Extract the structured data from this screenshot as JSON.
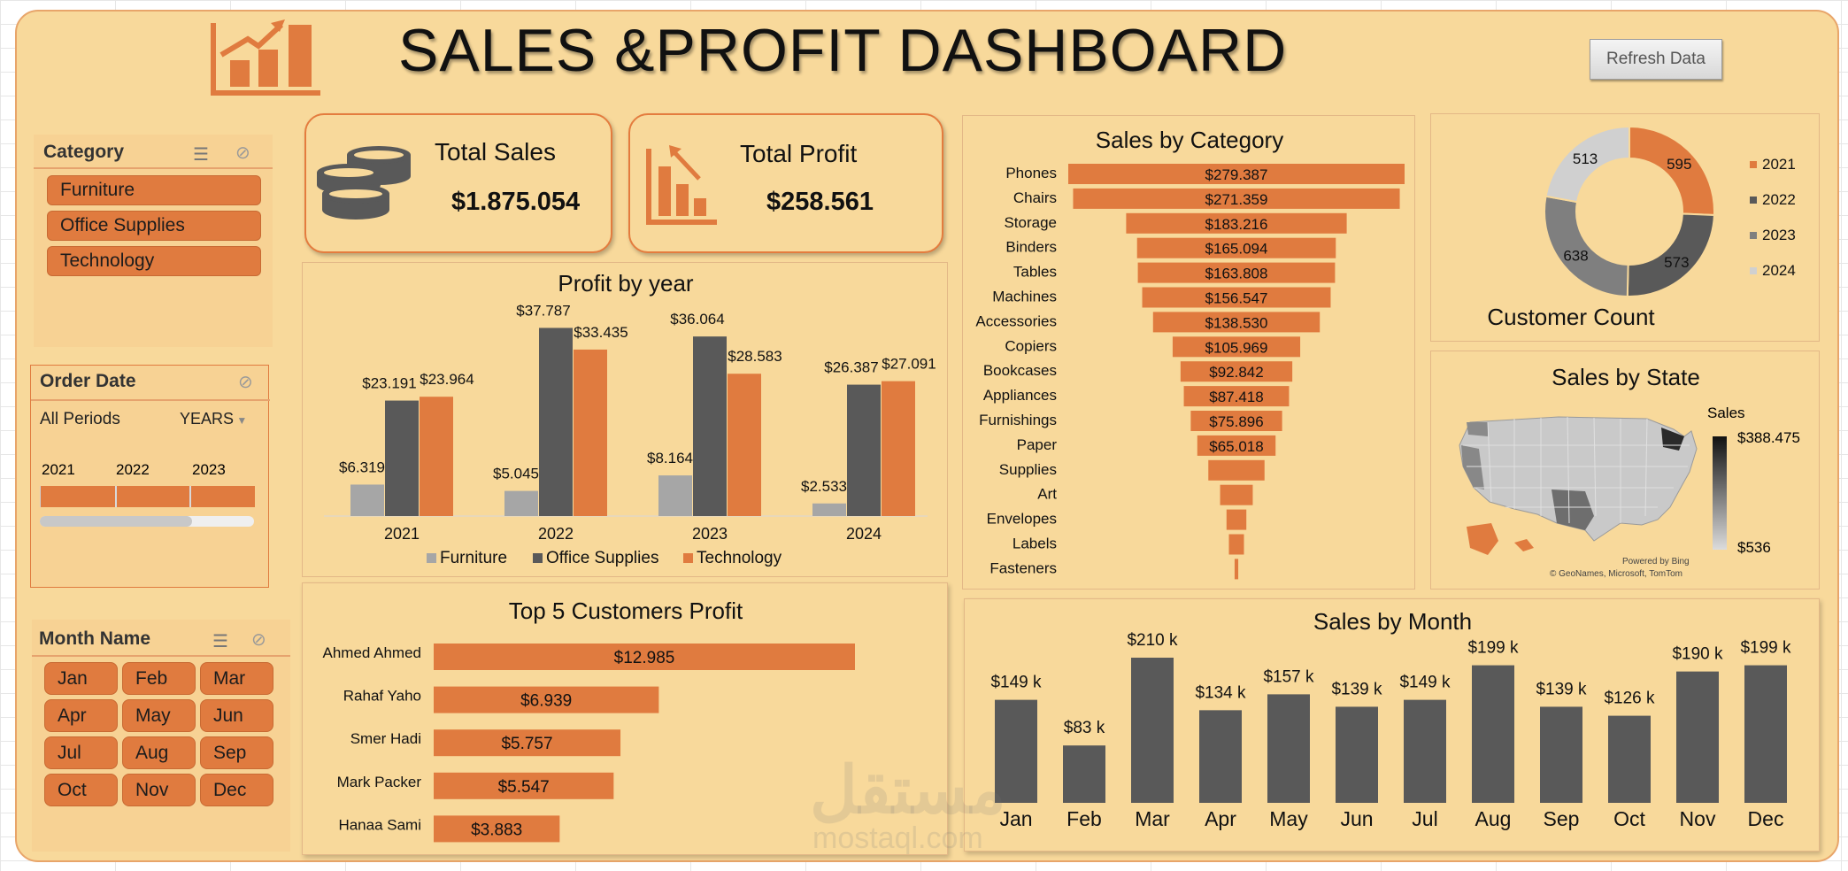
{
  "header": {
    "title": "SALES &PROFIT DASHBOARD",
    "refresh_label": "Refresh Data"
  },
  "kpis": {
    "sales_label": "Total Sales",
    "sales_value": "$1.875.054",
    "profit_label": "Total Profit",
    "profit_value": "$258.561"
  },
  "slicers": {
    "category": {
      "title": "Category",
      "items": [
        "Furniture",
        "Office Supplies",
        "Technology"
      ]
    },
    "order_date": {
      "title": "Order Date",
      "period": "All Periods",
      "level": "YEARS",
      "years": [
        "2021",
        "2022",
        "2023"
      ]
    },
    "month": {
      "title": "Month Name",
      "items": [
        "Jan",
        "Feb",
        "Mar",
        "Apr",
        "May",
        "Jun",
        "Jul",
        "Aug",
        "Sep",
        "Oct",
        "Nov",
        "Dec"
      ]
    }
  },
  "colors": {
    "orange": "#e07b3f",
    "dark": "#595959",
    "gray": "#a6a6a6",
    "light": "#d0d0d0",
    "bg": "#f8d99b"
  },
  "map": {
    "title": "Sales by State",
    "legend_title": "Sales",
    "max": "$388.475",
    "min": "$536",
    "credit1": "Powered by Bing",
    "credit2": "© GeoNames, Microsoft, TomTom"
  },
  "watermark": {
    "arabic": "مستقل",
    "latin": "mostaql.com"
  },
  "chart_data": [
    {
      "id": "profit_by_year",
      "type": "bar",
      "title": "Profit by year",
      "categories": [
        "2021",
        "2022",
        "2023",
        "2024"
      ],
      "series": [
        {
          "name": "Furniture",
          "values": [
            6319,
            5045,
            8164,
            2533
          ],
          "labels": [
            "$6.319",
            "$5.045",
            "$8.164",
            "$2.533"
          ]
        },
        {
          "name": "Office Supplies",
          "values": [
            23191,
            37787,
            36064,
            26387
          ],
          "labels": [
            "$23.191",
            "$37.787",
            "$36.064",
            "$26.387"
          ]
        },
        {
          "name": "Technology",
          "values": [
            23964,
            33435,
            28583,
            27091
          ],
          "labels": [
            "$23.964",
            "$33.435",
            "$28.583",
            "$27.091"
          ]
        }
      ],
      "ylim": [
        0,
        40000
      ]
    },
    {
      "id": "sales_by_category",
      "type": "bar",
      "title": "Sales by Category",
      "orientation": "funnel",
      "categories": [
        "Phones",
        "Chairs",
        "Storage",
        "Binders",
        "Tables",
        "Machines",
        "Accessories",
        "Copiers",
        "Bookcases",
        "Appliances",
        "Furnishings",
        "Paper",
        "Supplies",
        "Art",
        "Envelopes",
        "Labels",
        "Fasteners"
      ],
      "values": [
        279387,
        271359,
        183216,
        165094,
        163808,
        156547,
        138530,
        105969,
        92842,
        87418,
        75896,
        65018,
        46674,
        27119,
        16476,
        12486,
        3024
      ],
      "labels": [
        "$279.387",
        "$271.359",
        "$183.216",
        "$165.094",
        "$163.808",
        "$156.547",
        "$138.530",
        "$105.969",
        "$92.842",
        "$87.418",
        "$75.896",
        "$65.018",
        "",
        "",
        "",
        "",
        ""
      ]
    },
    {
      "id": "customer_count",
      "type": "pie",
      "title": "Customer Count",
      "categories": [
        "2021",
        "2022",
        "2023",
        "2024"
      ],
      "values": [
        595,
        573,
        638,
        513
      ]
    },
    {
      "id": "top5_customers",
      "type": "bar",
      "title": "Top 5 Customers Profit",
      "orientation": "horizontal",
      "categories": [
        "Ahmed Ahmed",
        "Rahaf Yaho",
        "Smer Hadi",
        "Mark Packer",
        "Hanaa Sami"
      ],
      "values": [
        12985,
        6939,
        5757,
        5547,
        3883
      ],
      "labels": [
        "$12.985",
        "$6.939",
        "$5.757",
        "$5.547",
        "$3.883"
      ]
    },
    {
      "id": "sales_by_month",
      "type": "bar",
      "title": "Sales by Month",
      "categories": [
        "Jan",
        "Feb",
        "Mar",
        "Apr",
        "May",
        "Jun",
        "Jul",
        "Aug",
        "Sep",
        "Oct",
        "Nov",
        "Dec"
      ],
      "values": [
        149,
        83,
        210,
        134,
        157,
        139,
        149,
        199,
        139,
        126,
        190,
        199
      ],
      "labels": [
        "$149 k",
        "$83 k",
        "$210 k",
        "$134 k",
        "$157 k",
        "$139 k",
        "$149 k",
        "$199 k",
        "$139 k",
        "$126 k",
        "$190 k",
        "$199 k"
      ],
      "ylabel": "",
      "unit": "k"
    }
  ]
}
